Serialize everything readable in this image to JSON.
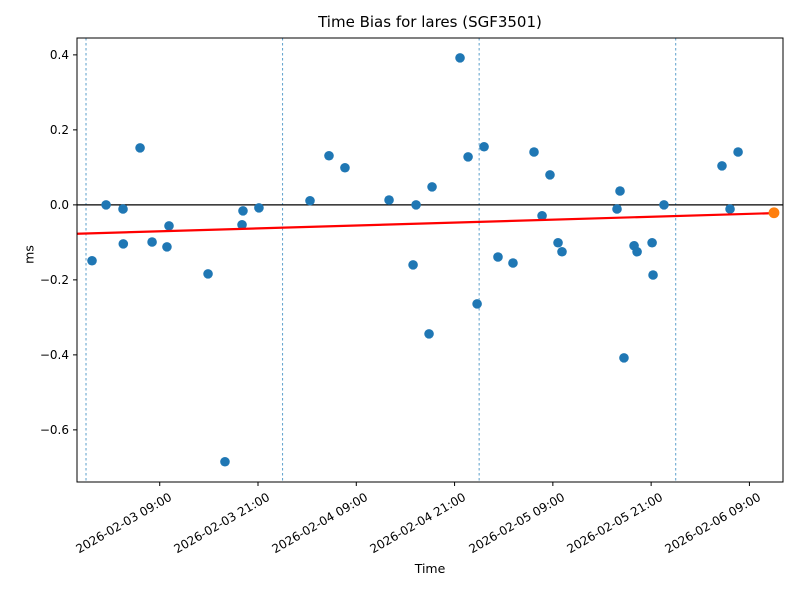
{
  "chart_data": {
    "type": "scatter",
    "title": "Time Bias for lares (SGF3501)",
    "xlabel": "Time",
    "ylabel": "ms",
    "background": "#ffffff",
    "grid": false,
    "x_axis": {
      "start": "2026-02-02 22:54",
      "end": "2026-02-06 13:06",
      "tick_labels": [
        "2026-02-03 09:00",
        "2026-02-03 21:00",
        "2026-02-04 09:00",
        "2026-02-04 21:00",
        "2026-02-05 09:00",
        "2026-02-05 21:00",
        "2026-02-06 09:00"
      ],
      "day_boundary_lines": [
        "2026-02-03 00:00",
        "2026-02-04 00:00",
        "2026-02-05 00:00",
        "2026-02-06 00:00"
      ],
      "day_line_color": "#4a95c5"
    },
    "y_axis": {
      "ylim": [
        -0.739,
        0.445
      ],
      "tick_values": [
        0.4,
        0.2,
        0.0,
        -0.2,
        -0.4,
        -0.6
      ],
      "tick_labels": [
        "0.4",
        "0.2",
        "0.0",
        "−0.2",
        "−0.4",
        "−0.6"
      ]
    },
    "zero_line": {
      "value": 0.0,
      "color": "#000000"
    },
    "trend_line": {
      "color": "#ff0000",
      "start": {
        "t": "2026-02-02 22:54",
        "ms": -0.077
      },
      "end": {
        "t": "2026-02-06 12:00",
        "ms": -0.022
      }
    },
    "series": [
      {
        "name": "time-bias-points",
        "color": "#1f77b4",
        "marker_radius": 4.8,
        "points": [
          {
            "t": "2026-02-03 00:44",
            "ms": -0.149
          },
          {
            "t": "2026-02-03 02:27",
            "ms": 0.0
          },
          {
            "t": "2026-02-03 04:31",
            "ms": -0.011
          },
          {
            "t": "2026-02-03 04:33",
            "ms": -0.104
          },
          {
            "t": "2026-02-03 06:36",
            "ms": 0.152
          },
          {
            "t": "2026-02-03 08:04",
            "ms": -0.099
          },
          {
            "t": "2026-02-03 09:53",
            "ms": -0.112
          },
          {
            "t": "2026-02-03 10:08",
            "ms": -0.056
          },
          {
            "t": "2026-02-03 14:54",
            "ms": -0.184
          },
          {
            "t": "2026-02-03 16:58",
            "ms": -0.685
          },
          {
            "t": "2026-02-03 19:03",
            "ms": -0.053
          },
          {
            "t": "2026-02-03 19:10",
            "ms": -0.016
          },
          {
            "t": "2026-02-03 21:07",
            "ms": -0.008
          },
          {
            "t": "2026-02-04 03:21",
            "ms": 0.011
          },
          {
            "t": "2026-02-04 05:40",
            "ms": 0.131
          },
          {
            "t": "2026-02-04 07:37",
            "ms": 0.099
          },
          {
            "t": "2026-02-04 13:00",
            "ms": 0.013
          },
          {
            "t": "2026-02-04 15:56",
            "ms": -0.16
          },
          {
            "t": "2026-02-04 16:18",
            "ms": 0.0
          },
          {
            "t": "2026-02-04 17:53",
            "ms": -0.344
          },
          {
            "t": "2026-02-04 18:15",
            "ms": 0.048
          },
          {
            "t": "2026-02-04 21:40",
            "ms": 0.392
          },
          {
            "t": "2026-02-04 22:39",
            "ms": 0.128
          },
          {
            "t": "2026-02-04 23:45",
            "ms": -0.264
          },
          {
            "t": "2026-02-05 00:36",
            "ms": 0.155
          },
          {
            "t": "2026-02-05 02:18",
            "ms": -0.139
          },
          {
            "t": "2026-02-05 04:08",
            "ms": -0.155
          },
          {
            "t": "2026-02-05 06:42",
            "ms": 0.141
          },
          {
            "t": "2026-02-05 07:41",
            "ms": -0.029
          },
          {
            "t": "2026-02-05 08:39",
            "ms": 0.08
          },
          {
            "t": "2026-02-05 09:38",
            "ms": -0.101
          },
          {
            "t": "2026-02-05 10:07",
            "ms": -0.125
          },
          {
            "t": "2026-02-05 16:50",
            "ms": -0.011
          },
          {
            "t": "2026-02-05 17:12",
            "ms": 0.037
          },
          {
            "t": "2026-02-05 17:41",
            "ms": -0.408
          },
          {
            "t": "2026-02-05 18:55",
            "ms": -0.109
          },
          {
            "t": "2026-02-05 19:17",
            "ms": -0.125
          },
          {
            "t": "2026-02-05 21:07",
            "ms": -0.101
          },
          {
            "t": "2026-02-05 21:14",
            "ms": -0.187
          },
          {
            "t": "2026-02-05 22:34",
            "ms": 0.0
          },
          {
            "t": "2026-02-06 05:39",
            "ms": 0.104
          },
          {
            "t": "2026-02-06 06:38",
            "ms": -0.011
          },
          {
            "t": "2026-02-06 07:37",
            "ms": 0.141
          }
        ]
      },
      {
        "name": "latest-point",
        "color": "#ff7f0e",
        "marker_radius": 5.4,
        "points": [
          {
            "t": "2026-02-06 12:00",
            "ms": -0.021
          }
        ]
      }
    ]
  }
}
